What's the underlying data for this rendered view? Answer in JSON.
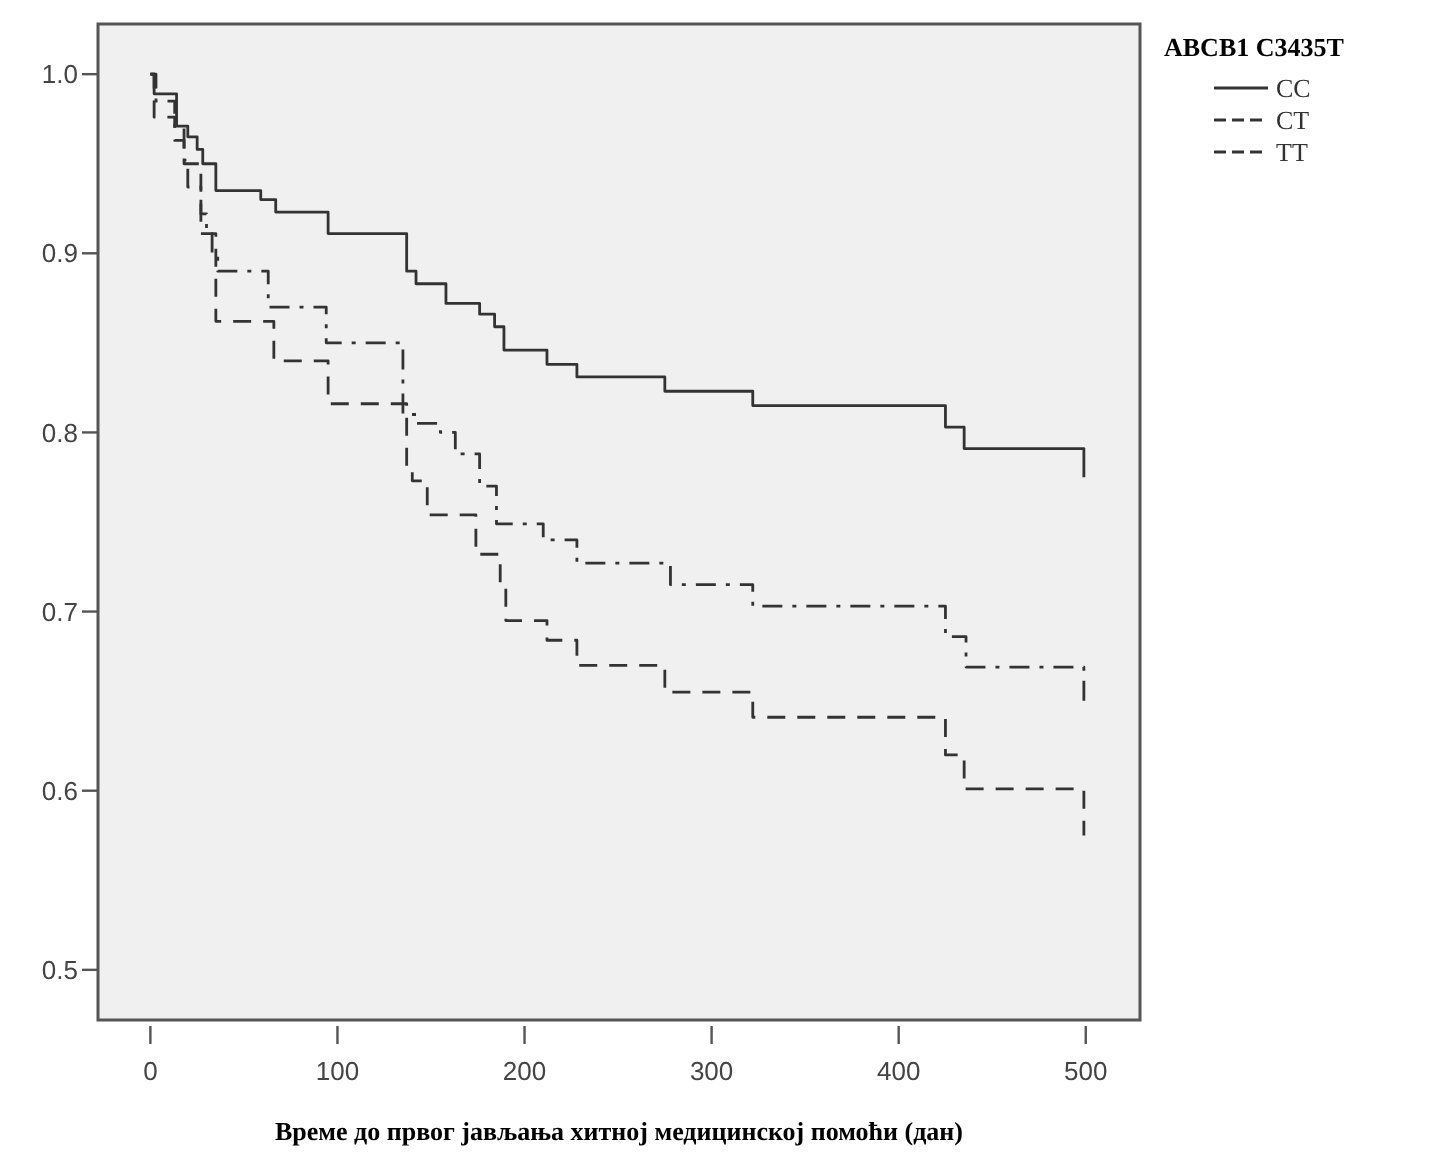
{
  "chart_data": {
    "type": "step",
    "xlabel": "Време до првог јављања хитној медицинској помоћи (дан)",
    "legend_title": "ABCB1 C3435T",
    "legend": "top right",
    "grid": false,
    "xlim": [
      -28,
      529
    ],
    "ylim": [
      0.472,
      1.028
    ],
    "xticks": [
      0,
      100,
      200,
      300,
      400,
      500
    ],
    "yticks": [
      {
        "value": 0.5,
        "label": "0.5"
      },
      {
        "value": 0.6,
        "label": "0.6"
      },
      {
        "value": 0.7,
        "label": "0.7"
      },
      {
        "value": 0.8,
        "label": "0.8"
      },
      {
        "value": 0.9,
        "label": "0.9"
      },
      {
        "value": 1,
        "label": "1.0"
      }
    ],
    "series": [
      {
        "name": "CC",
        "color": "#333333",
        "line_style": "solid",
        "x": [
          0,
          2,
          14,
          20,
          25,
          28,
          35,
          59,
          67,
          95,
          137,
          142,
          158,
          176,
          184,
          189,
          212,
          228,
          275,
          322,
          425,
          435,
          499,
          499
        ],
        "values": [
          1,
          0.989,
          0.971,
          0.965,
          0.958,
          0.95,
          0.935,
          0.93,
          0.923,
          0.911,
          0.89,
          0.883,
          0.872,
          0.866,
          0.859,
          0.846,
          0.838,
          0.831,
          0.823,
          0.815,
          0.803,
          0.791,
          0.791,
          0.775
        ]
      },
      {
        "name": "CT",
        "color": "#333333",
        "line_style": "dashdot",
        "x": [
          0,
          3,
          13,
          18,
          20,
          27,
          30,
          33,
          36,
          63,
          94,
          135,
          142,
          155,
          163,
          176,
          185,
          210,
          228,
          278,
          322,
          425,
          436,
          499,
          499
        ],
        "values": [
          1,
          0.985,
          0.97,
          0.952,
          0.937,
          0.922,
          0.911,
          0.9,
          0.89,
          0.87,
          0.85,
          0.81,
          0.805,
          0.8,
          0.788,
          0.77,
          0.749,
          0.74,
          0.727,
          0.715,
          0.703,
          0.686,
          0.669,
          0.669,
          0.647
        ]
      },
      {
        "name": "TT",
        "color": "#333333",
        "line_style": "dashed",
        "x": [
          0,
          2,
          13,
          18,
          27,
          35,
          66,
          95,
          137,
          140,
          148,
          174,
          187,
          190,
          212,
          228,
          275,
          322,
          425,
          435,
          499,
          499
        ],
        "values": [
          1,
          0.976,
          0.963,
          0.95,
          0.911,
          0.862,
          0.84,
          0.816,
          0.78,
          0.773,
          0.754,
          0.732,
          0.714,
          0.695,
          0.684,
          0.67,
          0.655,
          0.641,
          0.62,
          0.601,
          0.601,
          0.575
        ]
      }
    ]
  }
}
